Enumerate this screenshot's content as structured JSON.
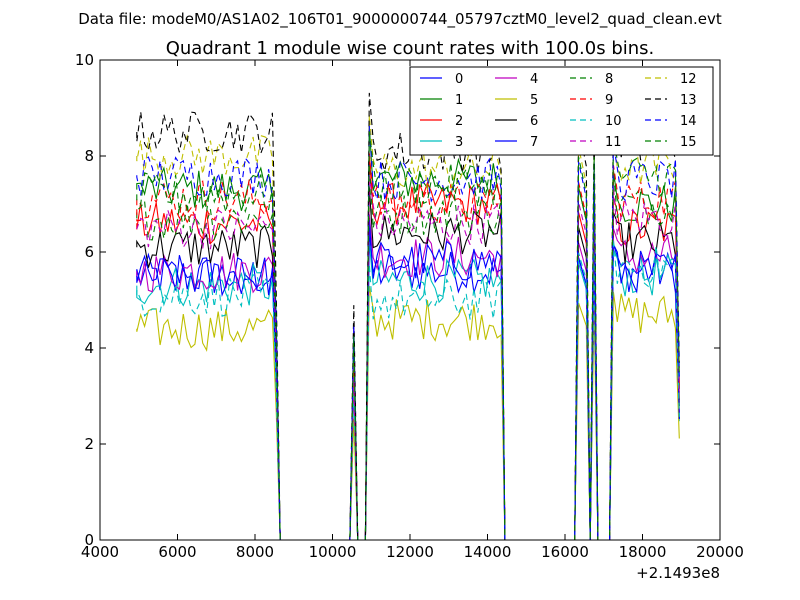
{
  "chart_data": {
    "type": "line",
    "suptitle": "Data file: modeM0/AS1A02_106T01_9000000744_05797cztM0_level2_quad_clean.evt",
    "title": "Quadrant 1 module wise count rates with 100.0s bins.",
    "xlabel": "",
    "ylabel": "",
    "xlim": [
      4000,
      20000
    ],
    "ylim": [
      0,
      10
    ],
    "x_ticks": [
      "4000",
      "6000",
      "8000",
      "10000",
      "12000",
      "14000",
      "16000",
      "18000",
      "20000"
    ],
    "y_ticks": [
      "0",
      "2",
      "4",
      "6",
      "8",
      "10"
    ],
    "x_offset_label": "+2.1493e8",
    "grid": false,
    "legend": {
      "placement": "top-right",
      "columns": 4
    },
    "segments": [
      {
        "start": 4950,
        "end": 8450
      },
      {
        "start": 11050,
        "end": 14350
      },
      {
        "start": 17350,
        "end": 18850
      }
    ],
    "spikes": [
      {
        "x": 10550,
        "level_ratio": 0.72
      },
      {
        "x": 16350,
        "level_ratio": 1.05
      },
      {
        "x": 16750,
        "level_ratio": 1.05
      }
    ],
    "series": [
      {
        "name": "0",
        "color": "#0000ff",
        "dash": "solid",
        "base": [
          5.5,
          5.6,
          5.6
        ]
      },
      {
        "name": "1",
        "color": "#008000",
        "dash": "solid",
        "base": [
          7.3,
          7.5,
          7.0
        ]
      },
      {
        "name": "2",
        "color": "#ff0000",
        "dash": "solid",
        "base": [
          6.6,
          7.0,
          6.5
        ]
      },
      {
        "name": "3",
        "color": "#00bfbf",
        "dash": "solid",
        "base": [
          5.3,
          5.4,
          5.5
        ]
      },
      {
        "name": "4",
        "color": "#bf00bf",
        "dash": "solid",
        "base": [
          5.6,
          5.9,
          5.9
        ]
      },
      {
        "name": "5",
        "color": "#bfbf00",
        "dash": "solid",
        "base": [
          4.4,
          4.6,
          4.7
        ]
      },
      {
        "name": "6",
        "color": "#000000",
        "dash": "solid",
        "base": [
          6.1,
          6.4,
          6.2
        ]
      },
      {
        "name": "7",
        "color": "#0000ff",
        "dash": "solid",
        "base": [
          5.5,
          5.8,
          5.6
        ]
      },
      {
        "name": "8",
        "color": "#008000",
        "dash": "dashed",
        "base": [
          6.7,
          6.8,
          7.0
        ]
      },
      {
        "name": "9",
        "color": "#ff0000",
        "dash": "dashed",
        "base": [
          7.1,
          7.0,
          7.1
        ]
      },
      {
        "name": "10",
        "color": "#00bfbf",
        "dash": "dashed",
        "base": [
          5.1,
          5.0,
          5.7
        ]
      },
      {
        "name": "11",
        "color": "#bf00bf",
        "dash": "dashed",
        "base": [
          6.5,
          6.6,
          6.7
        ]
      },
      {
        "name": "12",
        "color": "#bfbf00",
        "dash": "dashed",
        "base": [
          8.0,
          7.7,
          7.8
        ]
      },
      {
        "name": "13",
        "color": "#000000",
        "dash": "dashed",
        "base": [
          8.5,
          8.1,
          8.2
        ]
      },
      {
        "name": "14",
        "color": "#0000ff",
        "dash": "dashed",
        "base": [
          7.6,
          7.5,
          7.5
        ]
      },
      {
        "name": "15",
        "color": "#008000",
        "dash": "dashed",
        "base": [
          7.2,
          7.4,
          7.6
        ]
      }
    ]
  }
}
